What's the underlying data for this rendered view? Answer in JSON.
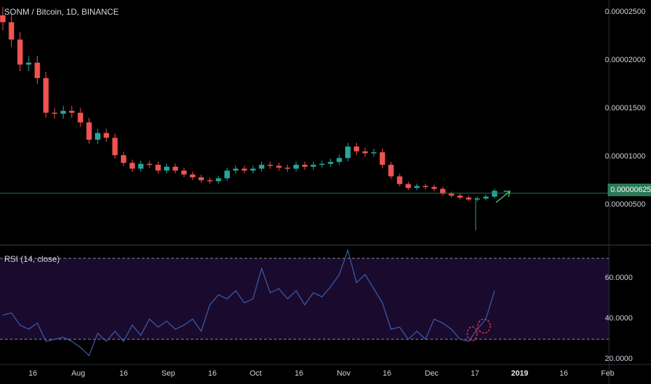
{
  "header": {
    "title": "SONM / Bitcoin, 1D, BINANCE"
  },
  "rsi_panel": {
    "title": "RSI (14, close)"
  },
  "price_axis": {
    "ticks": [
      "0.00002500",
      "0.00002000",
      "0.00001500",
      "0.00001000",
      "0.00000500"
    ],
    "current_price": "0.00000625"
  },
  "rsi_axis": {
    "ticks": [
      "60.0000",
      "40.0000",
      "20.0000"
    ]
  },
  "time_axis": {
    "ticks": [
      "16",
      "Aug",
      "16",
      "Sep",
      "16",
      "Oct",
      "16",
      "Nov",
      "16",
      "Dec",
      "17",
      "2019",
      "16",
      "Feb"
    ]
  },
  "colors": {
    "up": "#26a69a",
    "down": "#ef5350",
    "rsi_line": "#3d5fb0",
    "rsi_band": "#1a0b2e",
    "price_line": "#2a7a56",
    "arrow": "#3ddc84",
    "circle": "#e53935"
  },
  "chart_data": [
    {
      "type": "candlestick",
      "title": "SONM / Bitcoin, 1D, BINANCE",
      "ylim": [
        1e-06,
        2.65e-05
      ],
      "x": [
        "Jul 01",
        "Jul 03",
        "Jul 06",
        "Jul 09",
        "Jul 12",
        "Jul 16",
        "Jul 19",
        "Jul 22",
        "Jul 25",
        "Jul 28",
        "Aug 01",
        "Aug 04",
        "Aug 07",
        "Aug 10",
        "Aug 13",
        "Aug 16",
        "Aug 19",
        "Aug 22",
        "Aug 25",
        "Aug 28",
        "Sep 01",
        "Sep 04",
        "Sep 07",
        "Sep 10",
        "Sep 13",
        "Sep 16",
        "Sep 19",
        "Sep 22",
        "Sep 25",
        "Sep 28",
        "Oct 01",
        "Oct 04",
        "Oct 07",
        "Oct 10",
        "Oct 13",
        "Oct 16",
        "Oct 19",
        "Oct 22",
        "Oct 25",
        "Oct 28",
        "Nov 01",
        "Nov 04",
        "Nov 07",
        "Nov 10",
        "Nov 13",
        "Nov 16",
        "Nov 19",
        "Nov 22",
        "Nov 25",
        "Nov 28",
        "Dec 01",
        "Dec 04",
        "Dec 07",
        "Dec 10",
        "Dec 13",
        "Dec 16",
        "Dec 19",
        "Dec 22"
      ],
      "close": [
        2.4e-05,
        2.22e-05,
        1.96e-05,
        1.98e-05,
        1.82e-05,
        1.46e-05,
        1.45e-05,
        1.48e-05,
        1.46e-05,
        1.36e-05,
        1.18e-05,
        1.25e-05,
        1.2e-05,
        1.02e-05,
        9.4e-06,
        8.8e-06,
        9.3e-06,
        9.2e-06,
        8.6e-06,
        9e-06,
        8.6e-06,
        8.2e-06,
        7.9e-06,
        7.6e-06,
        7.5e-06,
        7.8e-06,
        8.6e-06,
        8.8e-06,
        8.6e-06,
        8.8e-06,
        9.2e-06,
        9.1e-06,
        8.9e-06,
        8.8e-06,
        9.2e-06,
        9e-06,
        9.2e-06,
        9.3e-06,
        9.5e-06,
        9.9e-06,
        1.11e-05,
        1.06e-05,
        1.04e-05,
        1.05e-05,
        9.2e-06,
        8e-06,
        7.2e-06,
        6.8e-06,
        7e-06,
        6.9e-06,
        6.7e-06,
        6.2e-06,
        6e-06,
        5.8e-06,
        5.6e-06,
        5.7e-06,
        5.9e-06,
        6.5e-06
      ]
    },
    {
      "type": "line",
      "title": "RSI (14, close)",
      "ylim": [
        18,
        76
      ],
      "upper_band": 70,
      "lower_band": 30,
      "x": [
        "Jul 01",
        "Jul 03",
        "Jul 06",
        "Jul 09",
        "Jul 12",
        "Jul 16",
        "Jul 19",
        "Jul 22",
        "Jul 25",
        "Jul 28",
        "Aug 01",
        "Aug 04",
        "Aug 07",
        "Aug 10",
        "Aug 13",
        "Aug 16",
        "Aug 19",
        "Aug 22",
        "Aug 25",
        "Aug 28",
        "Sep 01",
        "Sep 04",
        "Sep 07",
        "Sep 10",
        "Sep 13",
        "Sep 16",
        "Sep 19",
        "Sep 22",
        "Sep 25",
        "Sep 28",
        "Oct 01",
        "Oct 04",
        "Oct 07",
        "Oct 10",
        "Oct 13",
        "Oct 16",
        "Oct 19",
        "Oct 22",
        "Oct 25",
        "Oct 28",
        "Nov 01",
        "Nov 04",
        "Nov 07",
        "Nov 10",
        "Nov 13",
        "Nov 16",
        "Nov 19",
        "Nov 22",
        "Nov 25",
        "Nov 28",
        "Dec 01",
        "Dec 04",
        "Dec 07",
        "Dec 10",
        "Dec 13",
        "Dec 16",
        "Dec 19",
        "Dec 22"
      ],
      "values": [
        42,
        43,
        37,
        35,
        38,
        29,
        30,
        31,
        29,
        26,
        22,
        33,
        29,
        34,
        29,
        37,
        32,
        40,
        36,
        39,
        35,
        37,
        40,
        34,
        47,
        52,
        50,
        54,
        48,
        50,
        65,
        53,
        55,
        50,
        54,
        47,
        53,
        51,
        56,
        62,
        74,
        58,
        62,
        55,
        48,
        35,
        36,
        30,
        34,
        30,
        40,
        38,
        35,
        30,
        29,
        35,
        40,
        54
      ]
    }
  ]
}
